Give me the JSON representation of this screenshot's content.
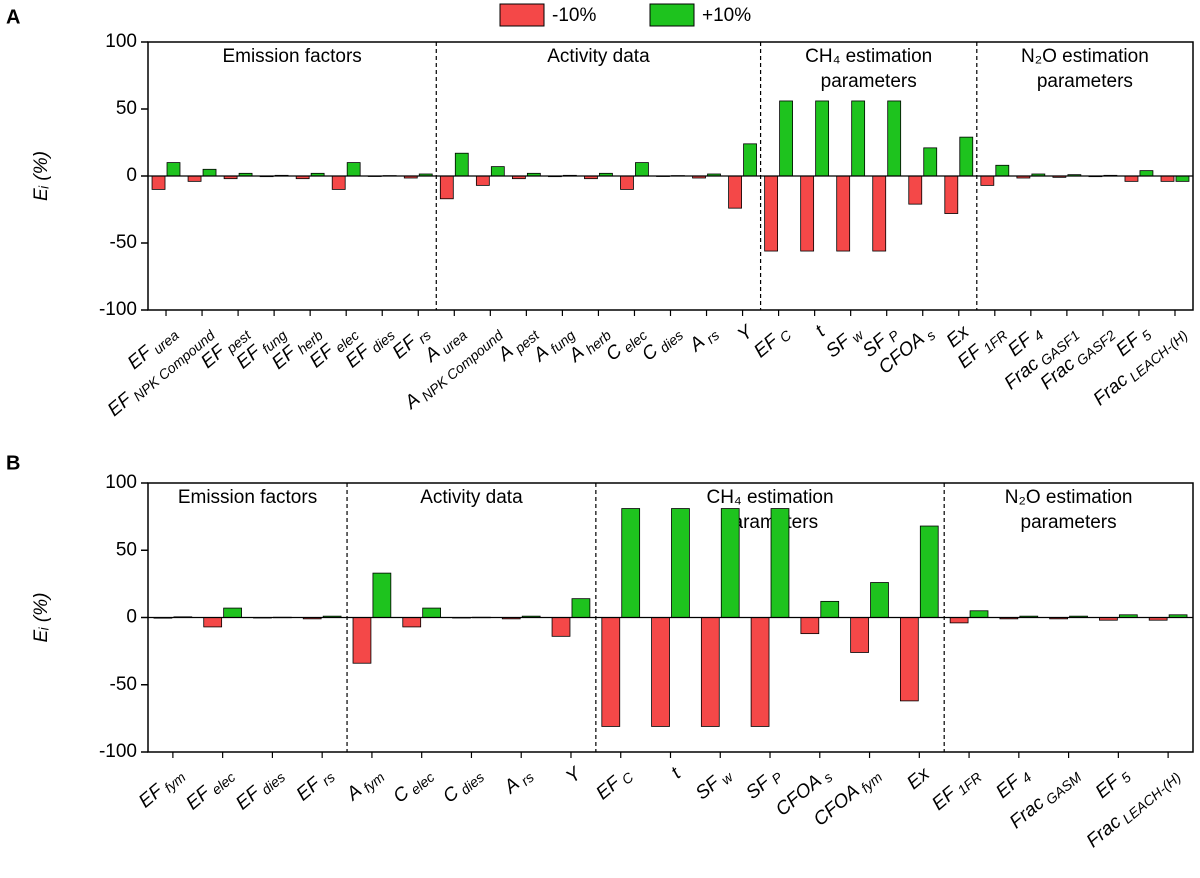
{
  "chart_data": [
    {
      "type": "bar",
      "panel": "A",
      "ylabel": "Eᵢ (%)",
      "ylim": [
        -100,
        100
      ],
      "yticks": [
        -100,
        -50,
        0,
        50,
        100
      ],
      "groups": [
        {
          "label": [
            "Emission factors"
          ],
          "categories": [
            "EF urea",
            "EF NPK Compound",
            "EF pest",
            "EF fung",
            "EF herb",
            "EF elec",
            "EF dies",
            "EF rs"
          ]
        },
        {
          "label": [
            "Activity data"
          ],
          "categories": [
            "A urea",
            "A NPK Compound",
            "A pest",
            "A fung",
            "A herb",
            "C elec",
            "C dies",
            "A rs",
            "Y"
          ]
        },
        {
          "label": [
            "CH₄ estimation",
            "parameters"
          ],
          "categories": [
            "EF C",
            "t",
            "SF w",
            "SF P",
            "CFOA s",
            "Ex"
          ]
        },
        {
          "label": [
            "N₂O estimation",
            "parameters"
          ],
          "categories": [
            "EF 1FR",
            "EF 4",
            "Frac GASF1",
            "Frac GASF2",
            "EF 5",
            "Frac LEACH-(H)"
          ]
        }
      ],
      "series": [
        {
          "name": "-10%",
          "color": "#f44848",
          "values": [
            -10,
            -4,
            -2,
            -0.5,
            -2,
            -10,
            -0.3,
            -1.5,
            -17,
            -7,
            -2,
            -0.5,
            -2,
            -10,
            -0.3,
            -1.5,
            -24,
            -56,
            -56,
            -56,
            -56,
            -21,
            -28,
            -7,
            -1.5,
            -1,
            -0.5,
            -4,
            -4
          ]
        },
        {
          "name": "+10%",
          "color": "#1ec31e",
          "values": [
            10,
            5,
            2,
            0.5,
            2,
            10,
            0.3,
            1.5,
            17,
            7,
            2,
            0.5,
            2,
            10,
            0.3,
            1.5,
            24,
            56,
            56,
            56,
            56,
            21,
            29,
            8,
            1.5,
            1,
            0.5,
            4,
            -4
          ]
        }
      ]
    },
    {
      "type": "bar",
      "panel": "B",
      "ylabel": "Eᵢ (%)",
      "ylim": [
        -100,
        100
      ],
      "yticks": [
        -100,
        -50,
        0,
        50,
        100
      ],
      "groups": [
        {
          "label": [
            "Emission factors"
          ],
          "categories": [
            "EF fym",
            "EF elec",
            "EF dies",
            "EF rs"
          ]
        },
        {
          "label": [
            "Activity data"
          ],
          "categories": [
            "A fym",
            "C elec",
            "C dies",
            "A rs",
            "Y"
          ]
        },
        {
          "label": [
            "CH₄ estimation",
            "parameters"
          ],
          "categories": [
            "EF C",
            "t",
            "SF w",
            "SF P",
            "CFOA s",
            "CFOA fym",
            "Ex"
          ]
        },
        {
          "label": [
            "N₂O estimation",
            "parameters"
          ],
          "categories": [
            "EF 1FR",
            "EF 4",
            "Frac GASM",
            "EF 5",
            "Frac LEACH-(H)"
          ]
        }
      ],
      "series": [
        {
          "color": "#f44848",
          "values": [
            -0.5,
            -7,
            -0.2,
            -1,
            -34,
            -7,
            -0.2,
            -1,
            -14,
            -81,
            -81,
            -81,
            -81,
            -12,
            -26,
            -62,
            -4,
            -1,
            -1,
            -2,
            -2
          ]
        },
        {
          "color": "#1ec31e",
          "values": [
            0.5,
            7,
            0.2,
            1,
            33,
            7,
            0.2,
            1,
            14,
            81,
            81,
            81,
            81,
            12,
            26,
            68,
            5,
            1,
            1,
            2,
            2
          ]
        }
      ]
    }
  ]
}
